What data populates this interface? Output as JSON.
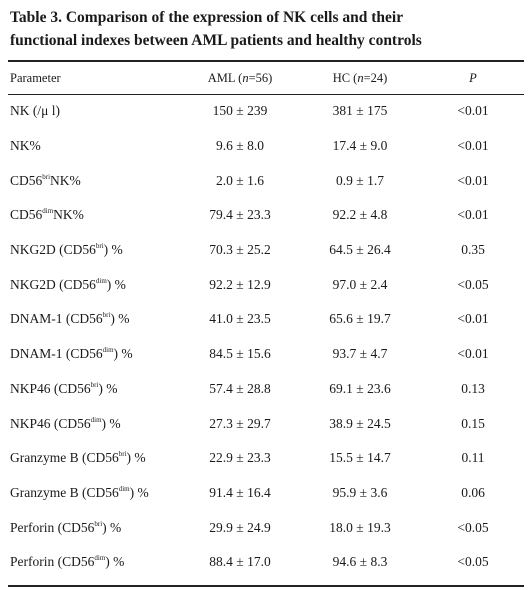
{
  "caption": {
    "line1": "Table 3. Comparison of the expression of NK cells and their",
    "line2": "functional indexes between AML patients and healthy controls"
  },
  "headers": {
    "parameter": "Parameter",
    "aml_pre": "AML (",
    "aml_n": "n",
    "aml_post": "=56)",
    "hc_pre": "HC (",
    "hc_n": "n",
    "hc_post": "=24)",
    "p": "P"
  },
  "rows": [
    {
      "pre": "NK (/μ l)",
      "sup": "",
      "post": "",
      "aml": "150 ± 239",
      "hc": "381 ± 175",
      "p": "<0.01"
    },
    {
      "pre": "NK%",
      "sup": "",
      "post": "",
      "aml": "9.6 ± 8.0",
      "hc": "17.4 ± 9.0",
      "p": "<0.01"
    },
    {
      "pre": "CD56",
      "sup": "bri",
      "post": "NK%",
      "aml": "2.0 ± 1.6",
      "hc": "0.9 ± 1.7",
      "p": "<0.01"
    },
    {
      "pre": "CD56",
      "sup": "dim",
      "post": "NK%",
      "aml": "79.4 ± 23.3",
      "hc": "92.2 ± 4.8",
      "p": "<0.01"
    },
    {
      "pre": "NKG2D (CD56",
      "sup": "bri",
      "post": ") %",
      "aml": "70.3 ± 25.2",
      "hc": "64.5 ± 26.4",
      "p": "0.35"
    },
    {
      "pre": "NKG2D (CD56",
      "sup": "dim",
      "post": ") %",
      "aml": "92.2 ± 12.9",
      "hc": "97.0 ± 2.4",
      "p": "<0.05"
    },
    {
      "pre": "DNAM-1 (CD56",
      "sup": "bri",
      "post": ") %",
      "aml": "41.0 ± 23.5",
      "hc": "65.6 ± 19.7",
      "p": "<0.01"
    },
    {
      "pre": "DNAM-1 (CD56",
      "sup": "dim",
      "post": ") %",
      "aml": "84.5 ± 15.6",
      "hc": "93.7 ± 4.7",
      "p": "<0.01"
    },
    {
      "pre": "NKP46 (CD56",
      "sup": "bri",
      "post": ") %",
      "aml": "57.4 ± 28.8",
      "hc": "69.1 ± 23.6",
      "p": "0.13"
    },
    {
      "pre": "NKP46 (CD56",
      "sup": "dim",
      "post": ") %",
      "aml": "27.3 ± 29.7",
      "hc": "38.9 ± 24.5",
      "p": "0.15"
    },
    {
      "pre": "Granzyme B (CD56",
      "sup": "bri",
      "post": ") %",
      "aml": "22.9 ± 23.3",
      "hc": "15.5 ± 14.7",
      "p": "0.11"
    },
    {
      "pre": "Granzyme B (CD56",
      "sup": "dim",
      "post": ") %",
      "aml": "91.4 ± 16.4",
      "hc": "95.9 ± 3.6",
      "p": "0.06"
    },
    {
      "pre": "Perforin (CD56",
      "sup": "bri",
      "post": ") %",
      "aml": "29.9 ± 24.9",
      "hc": "18.0 ± 19.3",
      "p": "<0.05"
    },
    {
      "pre": "Perforin (CD56",
      "sup": "dim",
      "post": ") %",
      "aml": "88.4 ± 17.0",
      "hc": "94.6 ± 8.3",
      "p": "<0.05"
    }
  ]
}
